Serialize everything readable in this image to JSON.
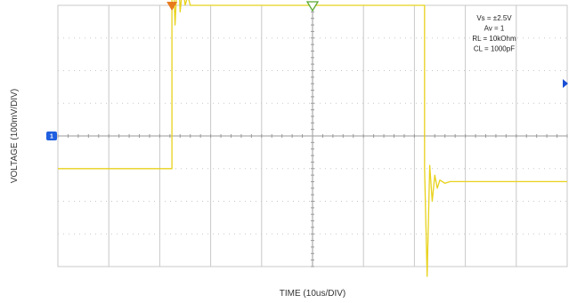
{
  "chart_data": {
    "type": "line",
    "xlabel": "TIME (10us/DIV)",
    "ylabel": "VOLTAGE (100mV/DIV)",
    "x_units": "us",
    "y_units": "mV",
    "x_divisions": 10,
    "y_divisions": 8,
    "x_per_div": 10,
    "y_per_div": 100,
    "xlim": [
      -50,
      50
    ],
    "ylim": [
      -400,
      400
    ],
    "grid": true,
    "conditions": [
      "Vs = ±2.5V",
      "Av = 1",
      "RL = 10kOhm",
      "CL = 1000pF"
    ],
    "channel_marker": "1",
    "series": [
      {
        "name": "",
        "color": "#e8d21a",
        "x": [
          -50,
          -27.6,
          -27.6,
          -27,
          -26.4,
          -26,
          -25.5,
          -25,
          -24.5,
          -24,
          -23,
          -22,
          22,
          22,
          22.5,
          23,
          23.5,
          24,
          24.5,
          25,
          26,
          27,
          50
        ],
        "y": [
          -100,
          -100,
          600,
          340,
          540,
          380,
          460,
          400,
          430,
          400,
          400,
          400,
          400,
          -100,
          -430,
          -90,
          -200,
          -120,
          -160,
          -135,
          -145,
          -140,
          -140
        ]
      }
    ],
    "markers": {
      "trigger_position_top": "orange triangle",
      "time_reference_top": "green triangle",
      "trigger_level_right": "blue triangle",
      "channel_ground_left": "blue flag"
    },
    "colors": {
      "trace": "#e8d21a",
      "grid": "#c8c8c8",
      "trigger_top": "#e87a1e",
      "reference_top": "#5aa832",
      "level_marker": "#1a4fd6",
      "channel_flag": "#1f5fe0"
    }
  }
}
